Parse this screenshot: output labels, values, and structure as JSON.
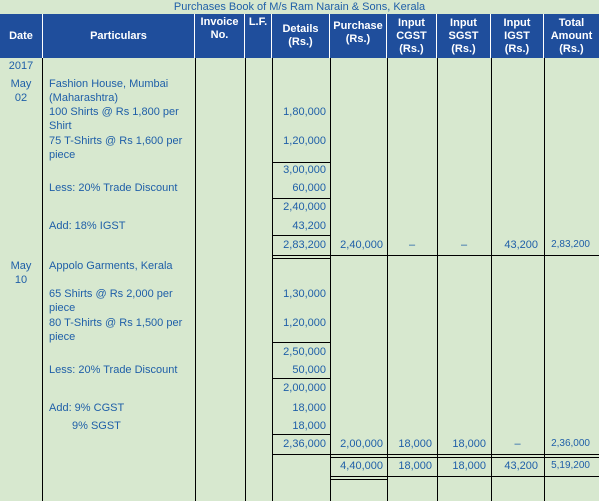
{
  "title": "Purchases Book of M/s Ram Narain & Sons, Kerala",
  "headers": {
    "date": "Date",
    "particulars": "Particulars",
    "invoice": "Invoice No.",
    "lf": "L.F.",
    "details": "Details (Rs.)",
    "purchase": "Purchase (Rs.)",
    "cgst": "Input CGST (Rs.)",
    "sgst": "Input SGST (Rs.)",
    "igst": "Input IGST (Rs.)",
    "total": "Total Amount (Rs.)"
  },
  "year": "2017",
  "entry1": {
    "month": "May",
    "day": "02",
    "party_line1": "Fashion House, Mumbai",
    "party_line2": "(Maharashtra)",
    "item1_line1": "100 Shirts @ Rs 1,800 per",
    "item1_line2": "Shirt",
    "item1_amount": "1,80,000",
    "item2_line1": "75 T-Shirts @ Rs 1,600 per",
    "item2_line2": "piece",
    "item2_amount": "1,20,000",
    "subtotal": "3,00,000",
    "discount_label": "Less: 20% Trade Discount",
    "discount_amount": "60,000",
    "net": "2,40,000",
    "tax_label": "Add: 18% IGST",
    "tax_amount": "43,200",
    "details_total": "2,83,200",
    "purchase": "2,40,000",
    "cgst": "–",
    "sgst": "–",
    "igst": "43,200",
    "total": "2,83,200"
  },
  "entry2": {
    "month": "May",
    "day": "10",
    "party_line1": "Appolo Garments, Kerala",
    "item1_line1": "65 Shirts @ Rs 2,000 per",
    "item1_line2": "piece",
    "item1_amount": "1,30,000",
    "item2_line1": "80 T-Shirts @ Rs 1,500 per",
    "item2_line2": "piece",
    "item2_amount": "1,20,000",
    "subtotal": "2,50,000",
    "discount_label": "Less: 20% Trade Discount",
    "discount_amount": "50,000",
    "net": "2,00,000",
    "cgst_label": "Add: 9% CGST",
    "cgst_amount": "18,000",
    "sgst_label": "9% SGST",
    "sgst_amount": "18,000",
    "details_total": "2,36,000",
    "purchase": "2,00,000",
    "cgst": "18,000",
    "sgst": "18,000",
    "igst": "–",
    "total": "2,36,000"
  },
  "grand_total": {
    "purchase": "4,40,000",
    "cgst": "18,000",
    "sgst": "18,000",
    "igst": "43,200",
    "total": "5,19,200"
  }
}
